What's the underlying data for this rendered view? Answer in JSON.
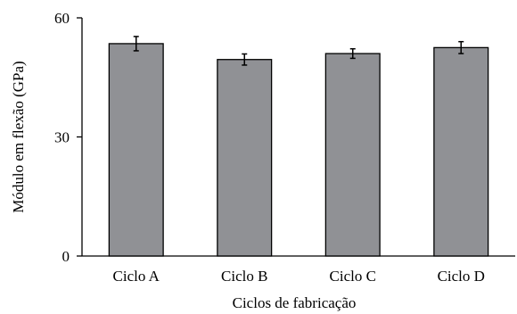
{
  "chart_data": {
    "type": "bar",
    "categories": [
      "Ciclo A",
      "Ciclo B",
      "Ciclo C",
      "Ciclo D"
    ],
    "values": [
      53.5,
      49.5,
      51.0,
      52.5
    ],
    "errors": [
      1.8,
      1.4,
      1.2,
      1.5
    ],
    "xlabel": "Ciclos de fabricação",
    "ylabel": "Módulo em flexão (GPa)",
    "ylim": [
      0,
      60
    ],
    "yticks": [
      0,
      30,
      60
    ],
    "grid": false,
    "colors": {
      "bar": "#909195",
      "bar_edge": "#000000",
      "axis": "#000000"
    }
  }
}
